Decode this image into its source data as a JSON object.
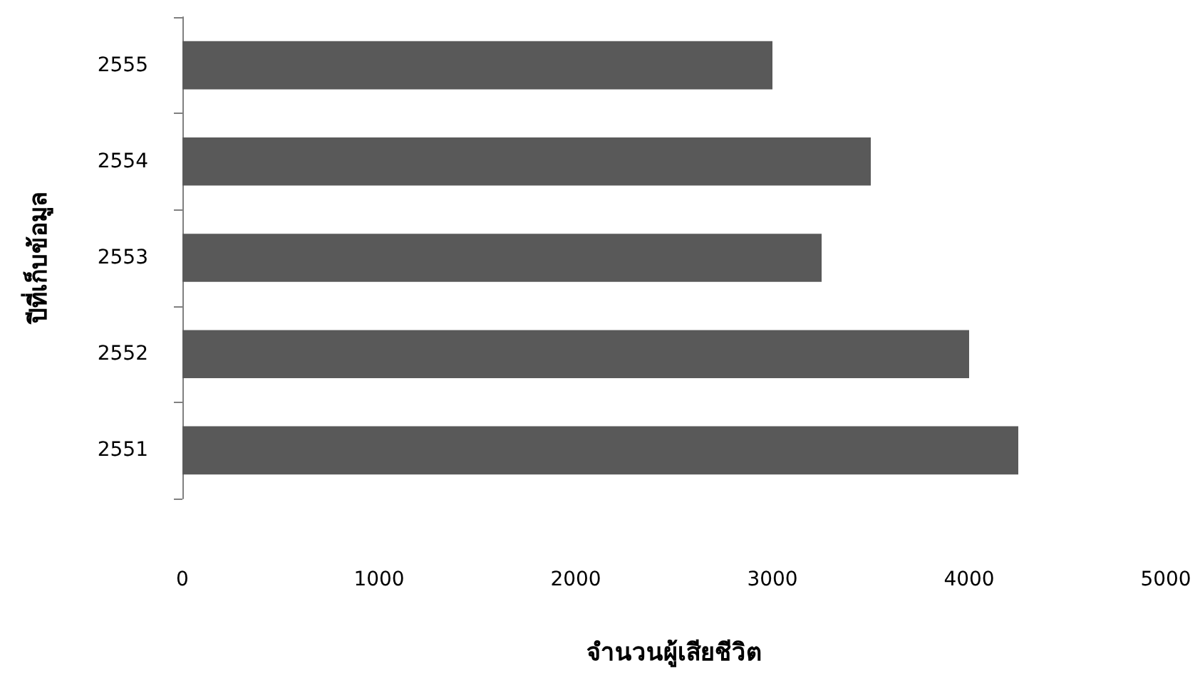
{
  "chart_data": {
    "type": "bar",
    "orientation": "horizontal",
    "xlabel": "จำนวนผู้เสียชีวิต",
    "ylabel": "ปีที่เก็บข้อมูล",
    "categories": [
      "2555",
      "2554",
      "2553",
      "2552",
      "2551"
    ],
    "values": [
      3000,
      3500,
      3250,
      4000,
      4250
    ],
    "color": "#595959",
    "xlim": [
      0,
      5000
    ],
    "xticks": [
      0,
      1000,
      2000,
      3000,
      4000,
      5000
    ],
    "grid": false
  }
}
